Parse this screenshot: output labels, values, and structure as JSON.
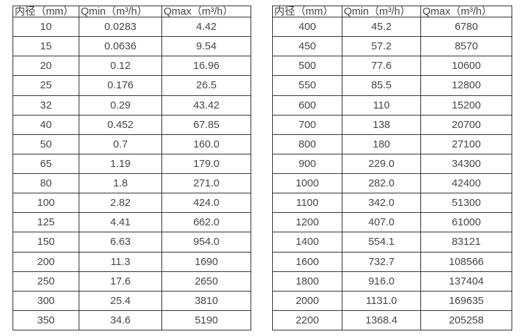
{
  "colors": {
    "background": "#ffffff",
    "border": "#2e2e2e",
    "text": "#454545"
  },
  "chart_data": [
    {
      "type": "table",
      "title": "",
      "headers": [
        "内径（mm）",
        "Qmin（m³/h）",
        "Qmax（m³/h）"
      ],
      "rows": [
        [
          "10",
          "0.0283",
          "4.42"
        ],
        [
          "15",
          "0.0636",
          "9.54"
        ],
        [
          "20",
          "0.12",
          "16.96"
        ],
        [
          "25",
          "0.176",
          "26.5"
        ],
        [
          "32",
          "0.29",
          "43.42"
        ],
        [
          "40",
          "0.452",
          "67.85"
        ],
        [
          "50",
          "0.7",
          "160.0"
        ],
        [
          "65",
          "1.19",
          "179.0"
        ],
        [
          "80",
          "1.8",
          "271.0"
        ],
        [
          "100",
          "2.82",
          "424.0"
        ],
        [
          "125",
          "4.41",
          "662.0"
        ],
        [
          "150",
          "6.63",
          "954.0"
        ],
        [
          "200",
          "11.3",
          "1690"
        ],
        [
          "250",
          "17.6",
          "2650"
        ],
        [
          "300",
          "25.4",
          "3810"
        ],
        [
          "350",
          "34.6",
          "5190"
        ]
      ]
    },
    {
      "type": "table",
      "title": "",
      "headers": [
        "内径（mm）",
        "Qmin（m³/h）",
        "Qmax（m³/h）"
      ],
      "rows": [
        [
          "400",
          "45.2",
          "6780"
        ],
        [
          "450",
          "57.2",
          "8570"
        ],
        [
          "500",
          "77.6",
          "10600"
        ],
        [
          "550",
          "85.5",
          "12800"
        ],
        [
          "600",
          "110",
          "15200"
        ],
        [
          "700",
          "138",
          "20700"
        ],
        [
          "800",
          "180",
          "27100"
        ],
        [
          "900",
          "229.0",
          "34300"
        ],
        [
          "1000",
          "282.0",
          "42400"
        ],
        [
          "1100",
          "342.0",
          "51300"
        ],
        [
          "1200",
          "407.0",
          "61000"
        ],
        [
          "1400",
          "554.1",
          "83121"
        ],
        [
          "1600",
          "732.7",
          "108566"
        ],
        [
          "1800",
          "916.0",
          "137404"
        ],
        [
          "2000",
          "1131.0",
          "169635"
        ],
        [
          "2200",
          "1368.4",
          "205258"
        ]
      ]
    }
  ]
}
